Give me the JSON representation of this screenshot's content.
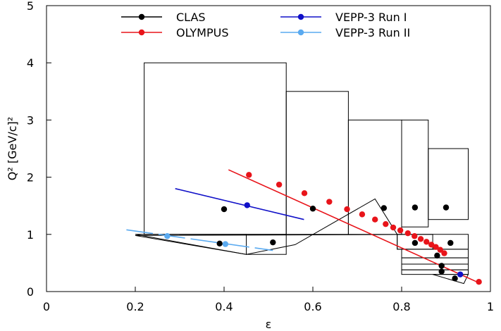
{
  "chart_data": {
    "type": "scatter",
    "xlabel": "ε",
    "ylabel": "Q² [GeV/c]²",
    "xlim": [
      0,
      1
    ],
    "ylim": [
      0,
      5
    ],
    "x_ticks": [
      {
        "value": 0,
        "label": "0"
      },
      {
        "value": 0.2,
        "label": "0.2"
      },
      {
        "value": 0.4,
        "label": "0.4"
      },
      {
        "value": 0.6,
        "label": "0.6"
      },
      {
        "value": 0.8,
        "label": "0.8"
      },
      {
        "value": 1,
        "label": "1"
      }
    ],
    "y_ticks": [
      {
        "value": 0,
        "label": "0"
      },
      {
        "value": 1,
        "label": "1"
      },
      {
        "value": 2,
        "label": "2"
      },
      {
        "value": 3,
        "label": "3"
      },
      {
        "value": 4,
        "label": "4"
      },
      {
        "value": 5,
        "label": "5"
      }
    ],
    "grid": false,
    "legend_position": "top-center",
    "series": [
      {
        "name": "CLAS",
        "color": "#000000",
        "line": false,
        "points": [
          {
            "x": 0.4,
            "y": 1.44
          },
          {
            "x": 0.6,
            "y": 1.45
          },
          {
            "x": 0.76,
            "y": 1.46
          },
          {
            "x": 0.83,
            "y": 1.47
          },
          {
            "x": 0.9,
            "y": 1.47
          },
          {
            "x": 0.39,
            "y": 0.84
          },
          {
            "x": 0.51,
            "y": 0.86
          },
          {
            "x": 0.83,
            "y": 0.85
          },
          {
            "x": 0.91,
            "y": 0.85
          },
          {
            "x": 0.88,
            "y": 0.63
          },
          {
            "x": 0.89,
            "y": 0.45
          },
          {
            "x": 0.89,
            "y": 0.35
          },
          {
            "x": 0.92,
            "y": 0.23
          }
        ]
      },
      {
        "name": "OLYMPUS",
        "color": "#e8141a",
        "line": true,
        "dash": "",
        "line_x": [
          0.41,
          0.975
        ],
        "line_y": [
          2.13,
          0.15
        ],
        "points": [
          {
            "x": 0.456,
            "y": 2.04
          },
          {
            "x": 0.524,
            "y": 1.87
          },
          {
            "x": 0.581,
            "y": 1.72
          },
          {
            "x": 0.637,
            "y": 1.57
          },
          {
            "x": 0.677,
            "y": 1.44
          },
          {
            "x": 0.711,
            "y": 1.35
          },
          {
            "x": 0.74,
            "y": 1.26
          },
          {
            "x": 0.764,
            "y": 1.18
          },
          {
            "x": 0.781,
            "y": 1.12
          },
          {
            "x": 0.797,
            "y": 1.07
          },
          {
            "x": 0.814,
            "y": 1.02
          },
          {
            "x": 0.829,
            "y": 0.97
          },
          {
            "x": 0.843,
            "y": 0.92
          },
          {
            "x": 0.856,
            "y": 0.87
          },
          {
            "x": 0.867,
            "y": 0.82
          },
          {
            "x": 0.877,
            "y": 0.78
          },
          {
            "x": 0.887,
            "y": 0.73
          },
          {
            "x": 0.896,
            "y": 0.67
          },
          {
            "x": 0.974,
            "y": 0.17
          }
        ]
      },
      {
        "name": "VEPP-3 Run I",
        "color": "#1010c8",
        "line": true,
        "dash": "",
        "line_x": [
          0.29,
          0.58
        ],
        "line_y": [
          1.8,
          1.26
        ],
        "points": [
          {
            "x": 0.452,
            "y": 1.51
          },
          {
            "x": 0.932,
            "y": 0.3
          }
        ]
      },
      {
        "name": "VEPP-3 Run II",
        "color": "#5aaaf0",
        "line": true,
        "dash": "38,8",
        "line_x": [
          0.18,
          0.51
        ],
        "line_y": [
          1.08,
          0.72
        ],
        "points": [
          {
            "x": 0.272,
            "y": 0.97
          },
          {
            "x": 0.403,
            "y": 0.83
          }
        ]
      }
    ],
    "regions": [
      {
        "kind": "rect",
        "x0": 0.22,
        "x1": 0.54,
        "y0": 1.0,
        "y1": 4.0
      },
      {
        "kind": "rect",
        "x0": 0.54,
        "x1": 0.68,
        "y0": 1.0,
        "y1": 3.5
      },
      {
        "kind": "rect",
        "x0": 0.68,
        "x1": 0.8,
        "y0": 1.0,
        "y1": 3.0
      },
      {
        "kind": "rect",
        "x0": 0.8,
        "x1": 0.86,
        "y0": 1.13,
        "y1": 3.0
      },
      {
        "kind": "rect",
        "x0": 0.86,
        "x1": 0.95,
        "y0": 1.26,
        "y1": 2.5
      },
      {
        "kind": "poly",
        "points": [
          [
            0.2,
            1.0
          ],
          [
            0.45,
            1.0
          ],
          [
            0.45,
            0.65
          ]
        ]
      },
      {
        "kind": "rect",
        "x0": 0.45,
        "x1": 0.54,
        "y0": 0.65,
        "y1": 1.0
      },
      {
        "kind": "poly",
        "points": [
          [
            0.2,
            0.98
          ],
          [
            0.45,
            0.65
          ],
          [
            0.56,
            0.82
          ],
          [
            0.74,
            1.62
          ],
          [
            0.79,
            1.0
          ],
          [
            0.79,
            0.74
          ],
          [
            0.95,
            0.74
          ],
          [
            0.95,
            1.0
          ],
          [
            0.87,
            1.0
          ]
        ]
      },
      {
        "kind": "rect",
        "x0": 0.79,
        "x1": 0.87,
        "y0": 0.74,
        "y1": 1.0
      },
      {
        "kind": "rect",
        "x0": 0.8,
        "x1": 0.95,
        "y0": 0.59,
        "y1": 0.74
      },
      {
        "kind": "rect",
        "x0": 0.8,
        "x1": 0.95,
        "y0": 0.48,
        "y1": 0.59
      },
      {
        "kind": "rect",
        "x0": 0.8,
        "x1": 0.95,
        "y0": 0.38,
        "y1": 0.48
      },
      {
        "kind": "rect",
        "x0": 0.8,
        "x1": 0.95,
        "y0": 0.3,
        "y1": 0.38
      },
      {
        "kind": "poly",
        "points": [
          [
            0.87,
            0.3
          ],
          [
            0.95,
            0.3
          ],
          [
            0.94,
            0.14
          ]
        ]
      }
    ]
  }
}
